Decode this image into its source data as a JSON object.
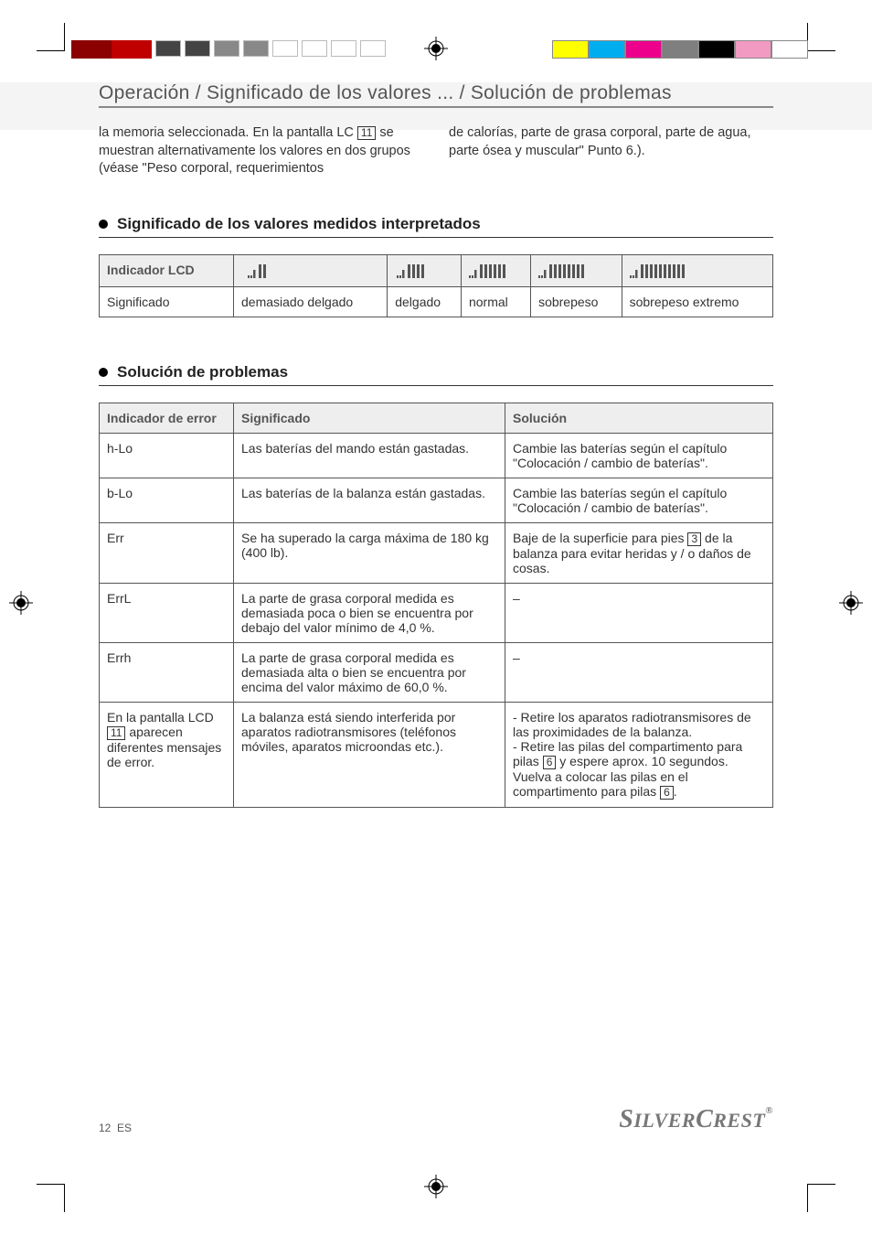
{
  "print_marks": {
    "color_swatches_right": [
      "#ffff00",
      "#00aeef",
      "#ec008c",
      "#7f7f7f",
      "#000000",
      "#f29ac1",
      "#ffffff"
    ],
    "grey_swatches_left_count": 8,
    "grey_swatches_left_start": "#2b2b2b",
    "color_blocks_left": [
      "#8b0000",
      "#c00000"
    ]
  },
  "header": "Operación / Significado de los valores ... / Solución de problemas",
  "intro": {
    "left_pre": "la memoria seleccionada. En la pantalla LC ",
    "left_ref": "11",
    "left_post": " se muestran alternativamente los valores en dos grupos (véase \"Peso corporal, requerimientos",
    "right": "de calorías, parte de grasa corporal, parte de agua, parte ósea y muscular\" Punto 6.)."
  },
  "section1": {
    "title": "Significado de los valores medidos interpretados",
    "table": {
      "row_header": "Indicador LCD",
      "row_label": "Significado",
      "bar_counts": [
        2,
        4,
        6,
        8,
        10
      ],
      "values": [
        "demasiado delgado",
        "delgado",
        "normal",
        "sobrepeso",
        "sobrepeso extremo"
      ]
    }
  },
  "section2": {
    "title": "Solución de problemas",
    "columns": [
      "Indicador de error",
      "Significado",
      "Solución"
    ],
    "rows": [
      {
        "c1": "h-Lo",
        "c2": "Las baterías del mando están gastadas.",
        "c3": "Cambie las baterías según el capítulo \"Colocación / cambio de baterías\"."
      },
      {
        "c1": "b-Lo",
        "c2": "Las baterías de la balanza están gastadas.",
        "c3": "Cambie las baterías según el capítulo \"Colocación / cambio de baterías\"."
      },
      {
        "c1": "Err",
        "c2": "Se ha superado la carga máxima de 180 kg (400 lb).",
        "c3_pre": "Baje de la superficie para pies ",
        "c3_ref": "3",
        "c3_post": " de la balanza para evitar heridas y / o daños de cosas."
      },
      {
        "c1": "ErrL",
        "c2": "La parte de grasa corporal medida es demasiada poca o bien se encuentra por debajo del valor mínimo de 4,0 %.",
        "c3": "–"
      },
      {
        "c1": "Errh",
        "c2": "La parte de grasa corporal medida es demasiada alta o bien se encuentra por encima del valor máximo de 60,0 %.",
        "c3": "–"
      },
      {
        "c1_pre": "En la pantalla LCD ",
        "c1_ref": "11",
        "c1_post": " aparecen diferentes mensajes de error.",
        "c2": "La balanza está siendo interferida por aparatos radiotransmisores (teléfonos móviles, aparatos microondas etc.).",
        "c3_lines": [
          "- Retire los aparatos radiotransmisores de las proximidades de la balanza.",
          "- Retire las pilas del compartimento para pilas [6] y espere aprox. 10 segundos. Vuelva a colocar las pilas en el compartimento para pilas [6]."
        ],
        "c3_ref": "6"
      }
    ]
  },
  "footer": {
    "page": "12",
    "lang": "ES",
    "brand": "SilverCrest"
  }
}
